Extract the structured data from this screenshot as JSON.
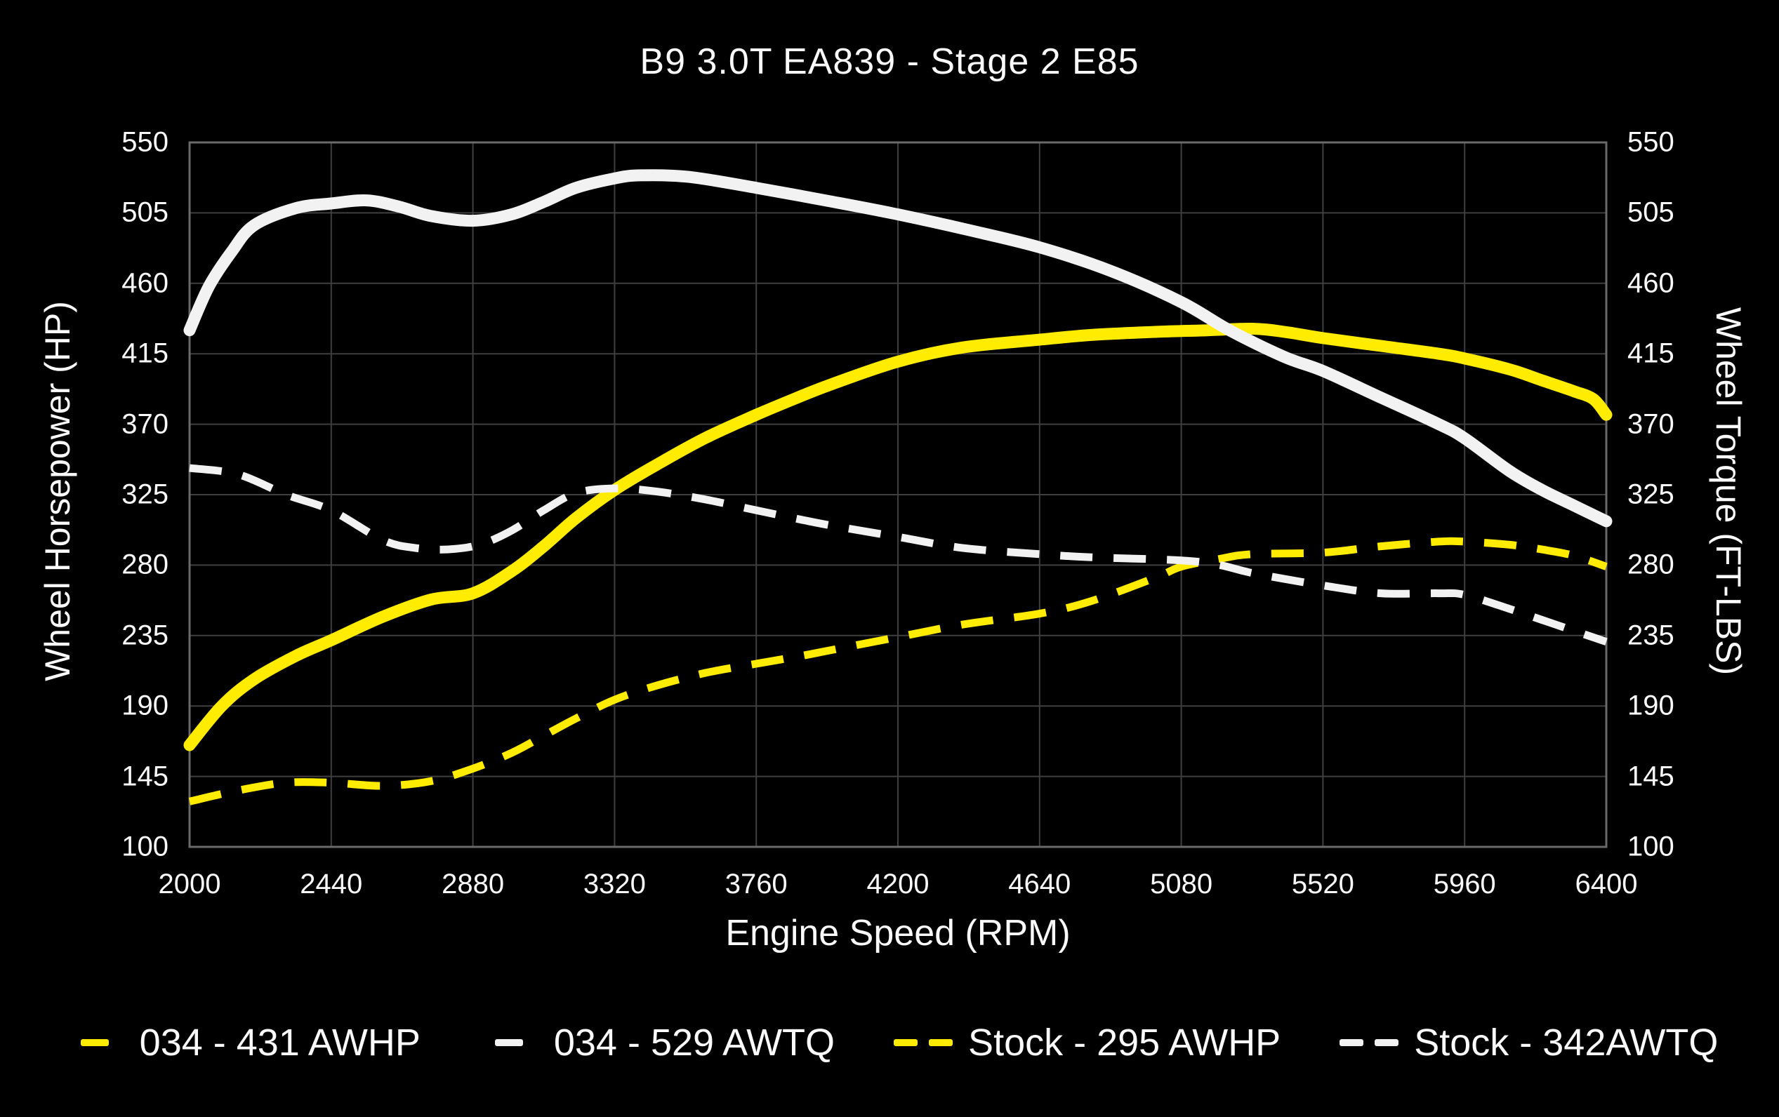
{
  "title": "B9 3.0T EA839 - Stage 2 E85",
  "colors": {
    "background": "#000000",
    "grid": "#3f3f3f",
    "axis_border": "#6a6a6a",
    "text": "#f5f5f5",
    "accent_yellow": "#ffec00",
    "accent_white": "#f2f2f2"
  },
  "chart_data": {
    "type": "line",
    "title": "B9 3.0T EA839 - Stage 2 E85",
    "xlabel": "Engine Speed (RPM)",
    "ylabel_left": "Wheel Horsepower (HP)",
    "ylabel_right": "Wheel Torque (FT-LBS)",
    "xlim": [
      2000,
      6400
    ],
    "ylim": [
      100,
      550
    ],
    "x_ticks": [
      2000,
      2440,
      2880,
      3320,
      3760,
      4200,
      4640,
      5080,
      5520,
      5960,
      6400
    ],
    "y_ticks": [
      100,
      145,
      190,
      235,
      280,
      325,
      370,
      415,
      460,
      505,
      550
    ],
    "grid": true,
    "legend_position": "bottom",
    "series": [
      {
        "name": "034 - 431 AWHP",
        "color": "#ffec00",
        "style": "solid",
        "axis": "left",
        "peak": 431,
        "x": [
          2000,
          2100,
          2200,
          2330,
          2440,
          2600,
          2750,
          2880,
          3000,
          3100,
          3200,
          3320,
          3450,
          3600,
          3760,
          3900,
          4000,
          4200,
          4400,
          4640,
          4800,
          5000,
          5160,
          5300,
          5400,
          5520,
          5700,
          5880,
          5960,
          6100,
          6200,
          6300,
          6360,
          6400
        ],
        "y": [
          165,
          190,
          207,
          222,
          232,
          247,
          258,
          262,
          276,
          292,
          310,
          328,
          344,
          361,
          376,
          388,
          396,
          410,
          419,
          424,
          427,
          429,
          430,
          431,
          429,
          425,
          420,
          415,
          412,
          405,
          398,
          391,
          386,
          376
        ]
      },
      {
        "name": "034 - 529 AWTQ",
        "color": "#f2f2f2",
        "style": "solid",
        "axis": "right",
        "peak": 529,
        "x": [
          2000,
          2060,
          2130,
          2200,
          2330,
          2440,
          2550,
          2650,
          2750,
          2880,
          3000,
          3100,
          3200,
          3320,
          3400,
          3550,
          3760,
          4000,
          4200,
          4420,
          4640,
          4860,
          5080,
          5230,
          5400,
          5520,
          5700,
          5880,
          5960,
          6100,
          6200,
          6300,
          6400
        ],
        "y": [
          430,
          458,
          480,
          497,
          508,
          511,
          513,
          509,
          503,
          500,
          504,
          512,
          521,
          527,
          529,
          528,
          521,
          512,
          504,
          494,
          483,
          468,
          448,
          430,
          413,
          404,
          387,
          370,
          361,
          340,
          328,
          318,
          308
        ]
      },
      {
        "name": "Stock - 295 AWHP",
        "color": "#ffec00",
        "style": "dashed",
        "axis": "left",
        "peak": 295,
        "x": [
          2000,
          2150,
          2300,
          2440,
          2600,
          2750,
          2880,
          3000,
          3100,
          3200,
          3320,
          3450,
          3600,
          3760,
          3900,
          4000,
          4200,
          4400,
          4640,
          4800,
          5000,
          5080,
          5200,
          5300,
          5520,
          5700,
          5880,
          5960,
          6100,
          6200,
          6300,
          6400
        ],
        "y": [
          129,
          136,
          141,
          141,
          139,
          142,
          150,
          160,
          171,
          182,
          194,
          203,
          211,
          217,
          222,
          226,
          234,
          242,
          249,
          257,
          272,
          279,
          284,
          287,
          288,
          292,
          295,
          295,
          293,
          290,
          286,
          279
        ]
      },
      {
        "name": "Stock - 342AWTQ",
        "color": "#f2f2f2",
        "style": "dashed",
        "axis": "right",
        "peak": 342,
        "x": [
          2000,
          2150,
          2300,
          2440,
          2600,
          2700,
          2800,
          2900,
          3000,
          3100,
          3200,
          3320,
          3450,
          3600,
          3760,
          3900,
          4000,
          4200,
          4400,
          4640,
          4800,
          5080,
          5200,
          5300,
          5520,
          5700,
          5880,
          5960,
          6100,
          6200,
          6300,
          6400
        ],
        "y": [
          342,
          338,
          325,
          315,
          296,
          291,
          290,
          293,
          302,
          315,
          326,
          329,
          327,
          322,
          315,
          309,
          305,
          298,
          291,
          287,
          285,
          283,
          280,
          275,
          267,
          262,
          262,
          261,
          252,
          245,
          238,
          231
        ]
      }
    ]
  }
}
